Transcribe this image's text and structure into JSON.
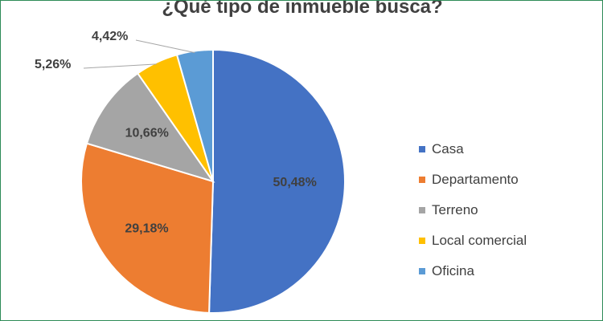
{
  "chart_data": {
    "type": "pie",
    "title": "¿Qué tipo de inmueble busca?",
    "categories": [
      "Casa",
      "Departamento",
      "Terreno",
      "Local comercial",
      "Oficina"
    ],
    "values": [
      50.48,
      29.18,
      10.66,
      5.26,
      4.42
    ],
    "labels": [
      "50,48%",
      "29,18%",
      "10,66%",
      "5,26%",
      "4,42%"
    ],
    "colors": [
      "#4472c4",
      "#ed7d31",
      "#a5a5a5",
      "#ffc000",
      "#5b9bd5"
    ],
    "legend_position": "right"
  }
}
